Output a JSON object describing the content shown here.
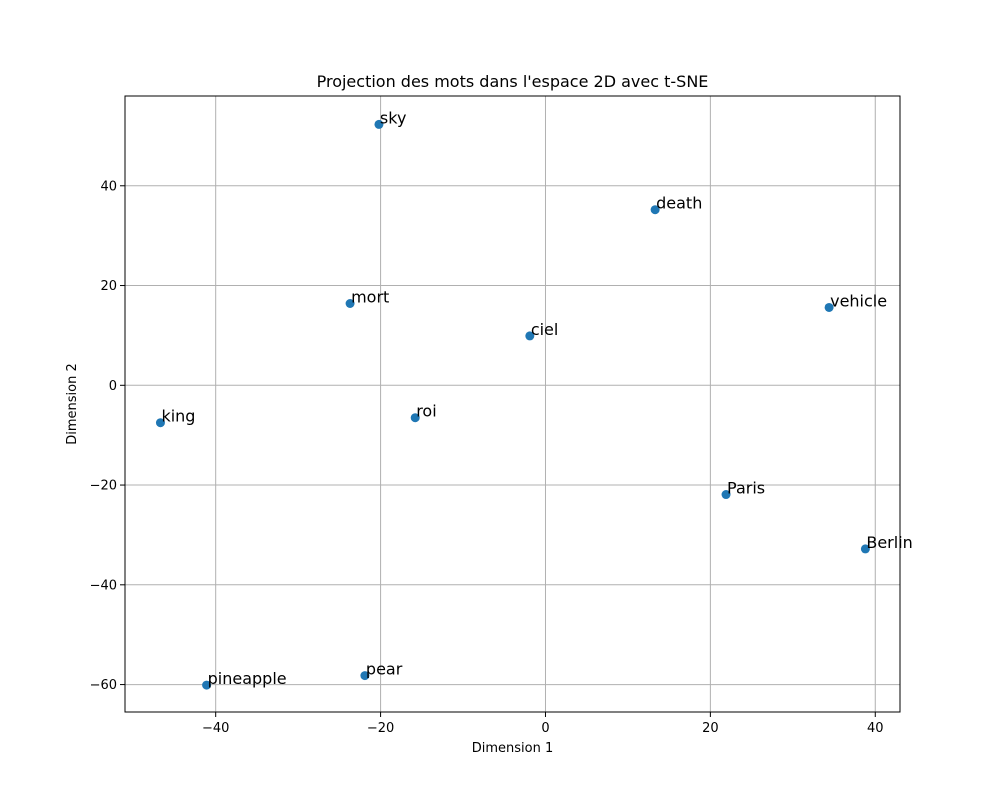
{
  "chart_data": {
    "type": "scatter",
    "title": "Projection des mots dans l'espace 2D avec t-SNE",
    "xlabel": "Dimension 1",
    "ylabel": "Dimension 2",
    "xlim": [
      -51,
      43
    ],
    "ylim": [
      -65.5,
      58
    ],
    "xticks": [
      -40,
      -20,
      0,
      20,
      40
    ],
    "yticks": [
      -60,
      -40,
      -20,
      0,
      20,
      40
    ],
    "xtick_labels": [
      "−40",
      "−20",
      "0",
      "20",
      "40"
    ],
    "ytick_labels": [
      "−60",
      "−40",
      "−20",
      "0",
      "20",
      "40"
    ],
    "grid": true,
    "marker_color": "#1f77b4",
    "points": [
      {
        "label": "sky",
        "x": -20.2,
        "y": 52.3
      },
      {
        "label": "death",
        "x": 13.3,
        "y": 35.2
      },
      {
        "label": "mort",
        "x": -23.7,
        "y": 16.4
      },
      {
        "label": "vehicle",
        "x": 34.4,
        "y": 15.6
      },
      {
        "label": "ciel",
        "x": -1.9,
        "y": 9.9
      },
      {
        "label": "roi",
        "x": -15.8,
        "y": -6.5
      },
      {
        "label": "king",
        "x": -46.7,
        "y": -7.5
      },
      {
        "label": "Paris",
        "x": 21.9,
        "y": -21.9
      },
      {
        "label": "Berlin",
        "x": 38.8,
        "y": -32.8
      },
      {
        "label": "pear",
        "x": -21.9,
        "y": -58.2
      },
      {
        "label": "pineapple",
        "x": -41.1,
        "y": -60.1
      }
    ]
  }
}
